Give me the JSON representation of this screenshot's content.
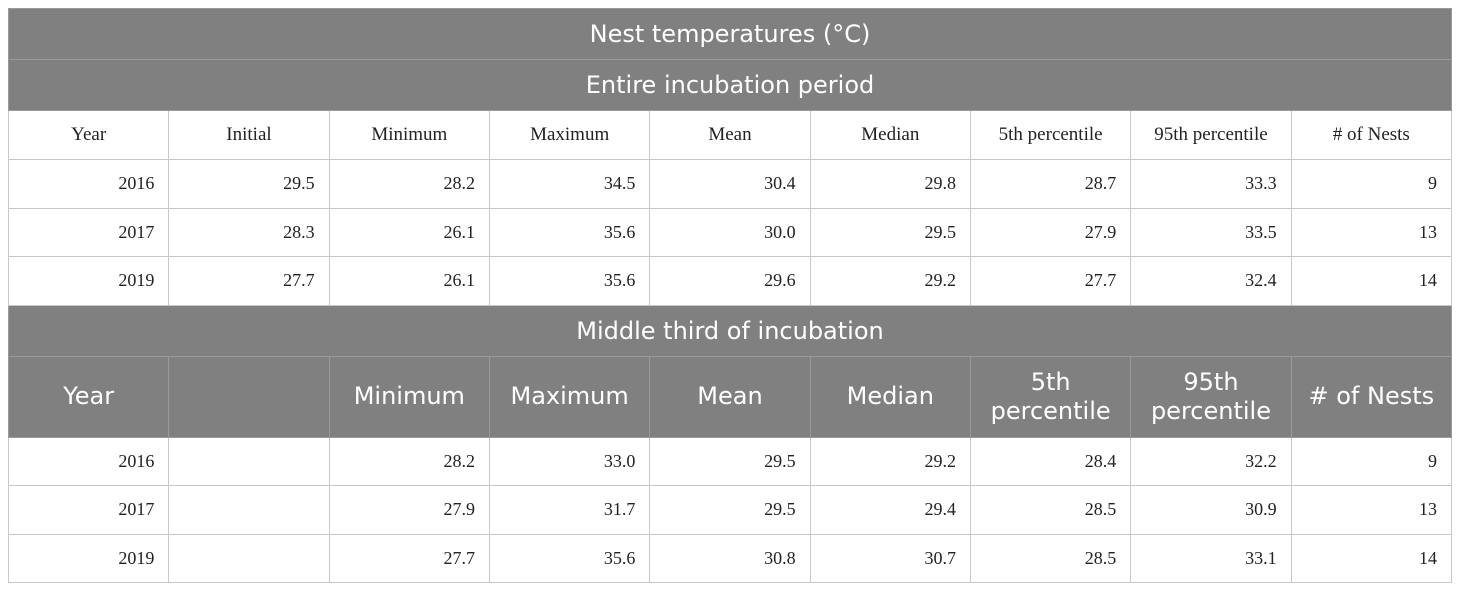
{
  "title": "Nest temperatures (°C)",
  "sections": [
    {
      "title": "Entire incubation period",
      "header": [
        "Year",
        "Initial",
        "Minimum",
        "Maximum",
        "Mean",
        "Median",
        "5th percentile",
        "95th percentile",
        "# of Nests"
      ],
      "rows": [
        [
          "2016",
          "29.5",
          "28.2",
          "34.5",
          "30.4",
          "29.8",
          "28.7",
          "33.3",
          "9"
        ],
        [
          "2017",
          "28.3",
          "26.1",
          "35.6",
          "30.0",
          "29.5",
          "27.9",
          "33.5",
          "13"
        ],
        [
          "2019",
          "27.7",
          "26.1",
          "35.6",
          "29.6",
          "29.2",
          "27.7",
          "32.4",
          "14"
        ]
      ]
    },
    {
      "title": "Middle third of incubation",
      "header": [
        "Year",
        "Minimum",
        "Maximum",
        "Mean",
        "Median",
        "5th percentile",
        "95th percentile",
        "# of Nests"
      ],
      "rows": [
        [
          "2016",
          "28.2",
          "33.0",
          "29.5",
          "29.2",
          "28.4",
          "32.2",
          "9"
        ],
        [
          "2017",
          "27.9",
          "31.7",
          "29.5",
          "29.4",
          "28.5",
          "30.9",
          "13"
        ],
        [
          "2019",
          "27.7",
          "35.6",
          "30.8",
          "30.7",
          "28.5",
          "33.1",
          "14"
        ]
      ]
    }
  ]
}
